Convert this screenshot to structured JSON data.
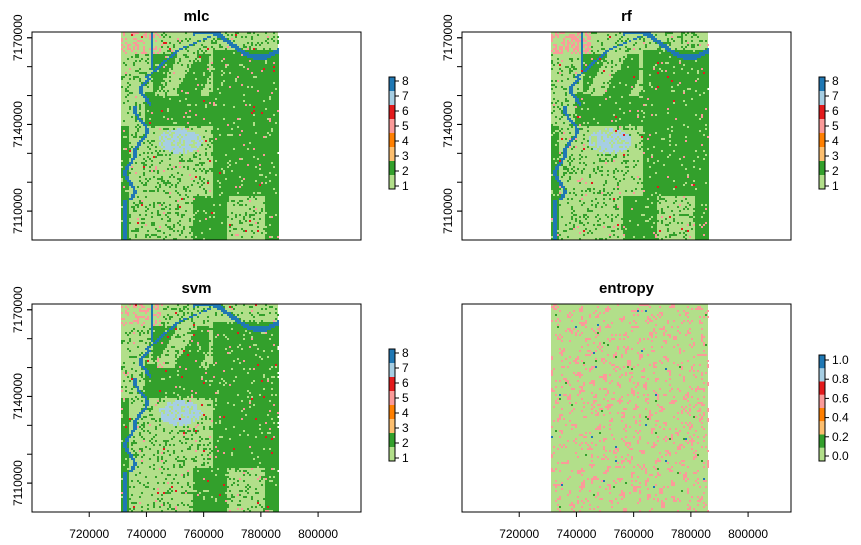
{
  "palette": [
    "#b2df8a",
    "#33a02c",
    "#fdbf6f",
    "#ff7f00",
    "#fb9a99",
    "#e31a1c",
    "#a6cee3",
    "#1f78b4"
  ],
  "chart_data": [
    {
      "type": "heatmap",
      "title": "mlc",
      "xlim": [
        700000,
        815000
      ],
      "ylim": [
        7100000,
        7172000
      ],
      "extent": {
        "x": [
          731000,
          786000
        ],
        "y": [
          7100000,
          7172000
        ]
      },
      "x_ticks": [
        "720000",
        "740000",
        "760000",
        "780000",
        "800000"
      ],
      "y_ticks": [
        "7110000",
        "7140000",
        "7170000"
      ],
      "show_x_ticks": false,
      "legend": {
        "labels": [
          "1",
          "2",
          "3",
          "4",
          "5",
          "6",
          "7",
          "8"
        ],
        "placement": "right"
      },
      "class_fractions": {
        "1": 0.5,
        "2": 0.42,
        "3": 0.01,
        "4": 0.005,
        "5": 0.04,
        "6": 0.005,
        "7": 0.01,
        "8": 0.01
      }
    },
    {
      "type": "heatmap",
      "title": "rf",
      "xlim": [
        700000,
        815000
      ],
      "ylim": [
        7100000,
        7172000
      ],
      "extent": {
        "x": [
          731000,
          786000
        ],
        "y": [
          7100000,
          7172000
        ]
      },
      "x_ticks": [
        "720000",
        "740000",
        "760000",
        "780000",
        "800000"
      ],
      "y_ticks": [
        "7110000",
        "7140000",
        "7170000"
      ],
      "show_x_ticks": false,
      "legend": {
        "labels": [
          "1",
          "2",
          "3",
          "4",
          "5",
          "6",
          "7",
          "8"
        ],
        "placement": "right"
      },
      "class_fractions": {
        "1": 0.5,
        "2": 0.42,
        "3": 0.01,
        "4": 0.005,
        "5": 0.04,
        "6": 0.005,
        "7": 0.01,
        "8": 0.01
      }
    },
    {
      "type": "heatmap",
      "title": "svm",
      "xlim": [
        700000,
        815000
      ],
      "ylim": [
        7100000,
        7172000
      ],
      "extent": {
        "x": [
          731000,
          786000
        ],
        "y": [
          7100000,
          7172000
        ]
      },
      "x_ticks": [
        "720000",
        "740000",
        "760000",
        "780000",
        "800000"
      ],
      "y_ticks": [
        "7110000",
        "7140000",
        "7170000"
      ],
      "show_x_ticks": true,
      "legend": {
        "labels": [
          "1",
          "2",
          "3",
          "4",
          "5",
          "6",
          "7",
          "8"
        ],
        "placement": "right"
      },
      "class_fractions": {
        "1": 0.5,
        "2": 0.42,
        "3": 0.01,
        "4": 0.005,
        "5": 0.04,
        "6": 0.005,
        "7": 0.01,
        "8": 0.01
      }
    },
    {
      "type": "heatmap",
      "title": "entropy",
      "xlim": [
        700000,
        815000
      ],
      "ylim": [
        7100000,
        7172000
      ],
      "extent": {
        "x": [
          731000,
          786000
        ],
        "y": [
          7100000,
          7172000
        ]
      },
      "x_ticks": [
        "720000",
        "740000",
        "760000",
        "780000",
        "800000"
      ],
      "y_ticks": [],
      "show_x_ticks": true,
      "legend": {
        "labels": [
          "0.0",
          "0.2",
          "0.4",
          "0.6",
          "0.8",
          "1.0"
        ],
        "placement": "right"
      },
      "class_fractions": {
        "0.0": 0.85,
        "0.2": 0.005,
        "0.4": 0.0,
        "0.6": 0.14,
        "0.8": 0.0,
        "1.0": 0.005
      }
    }
  ]
}
